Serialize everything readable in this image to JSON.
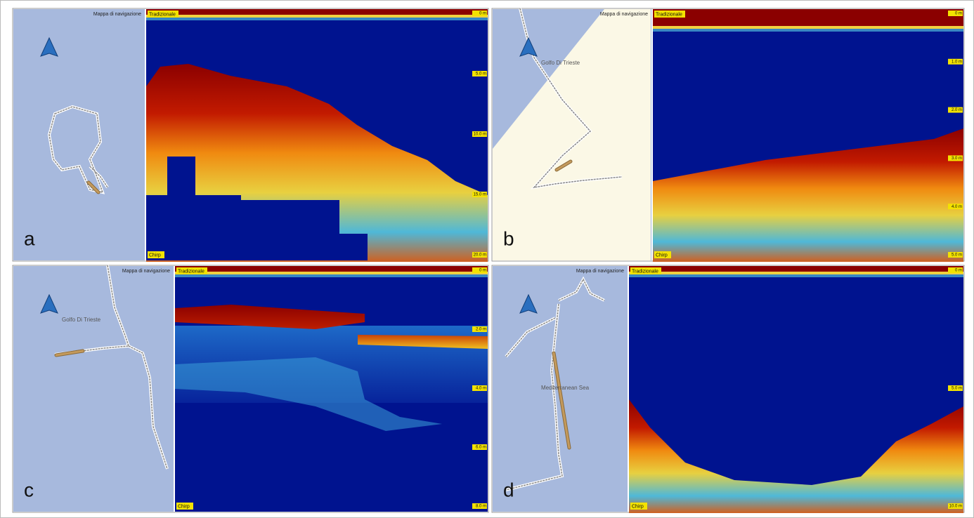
{
  "panels": [
    {
      "letter": "a",
      "map_title": "Mappa di navigazione",
      "mode": "Tradizionale",
      "chirp": "Chirp",
      "depth_labels": [
        "0 m",
        "5.0 m",
        "10.0 m",
        "15.0 m",
        "20.0 m"
      ]
    },
    {
      "letter": "b",
      "map_title": "Mappa di navigazione",
      "place": "Golfo Di Trieste",
      "mode": "Tradizionale",
      "chirp": "Chirp",
      "depth_labels": [
        "0 m",
        "1.0 m",
        "2.0 m",
        "3.0 m",
        "4.0 m",
        "5.0 m"
      ]
    },
    {
      "letter": "c",
      "map_title": "Mappa di navigazione",
      "place": "Golfo Di Trieste",
      "mode": "Tradizionale",
      "chirp": "Chirp",
      "depth_labels": [
        "0 m",
        "2.0 m",
        "4.0 m",
        "6.0 m",
        "8.0 m"
      ]
    },
    {
      "letter": "d",
      "map_title": "Mappa di navigazione",
      "place": "Mediterranean Sea",
      "mode": "Tradizionale",
      "chirp": "Chirp",
      "depth_labels": [
        "0 m",
        "5.0 m",
        "10.0 m"
      ]
    }
  ]
}
